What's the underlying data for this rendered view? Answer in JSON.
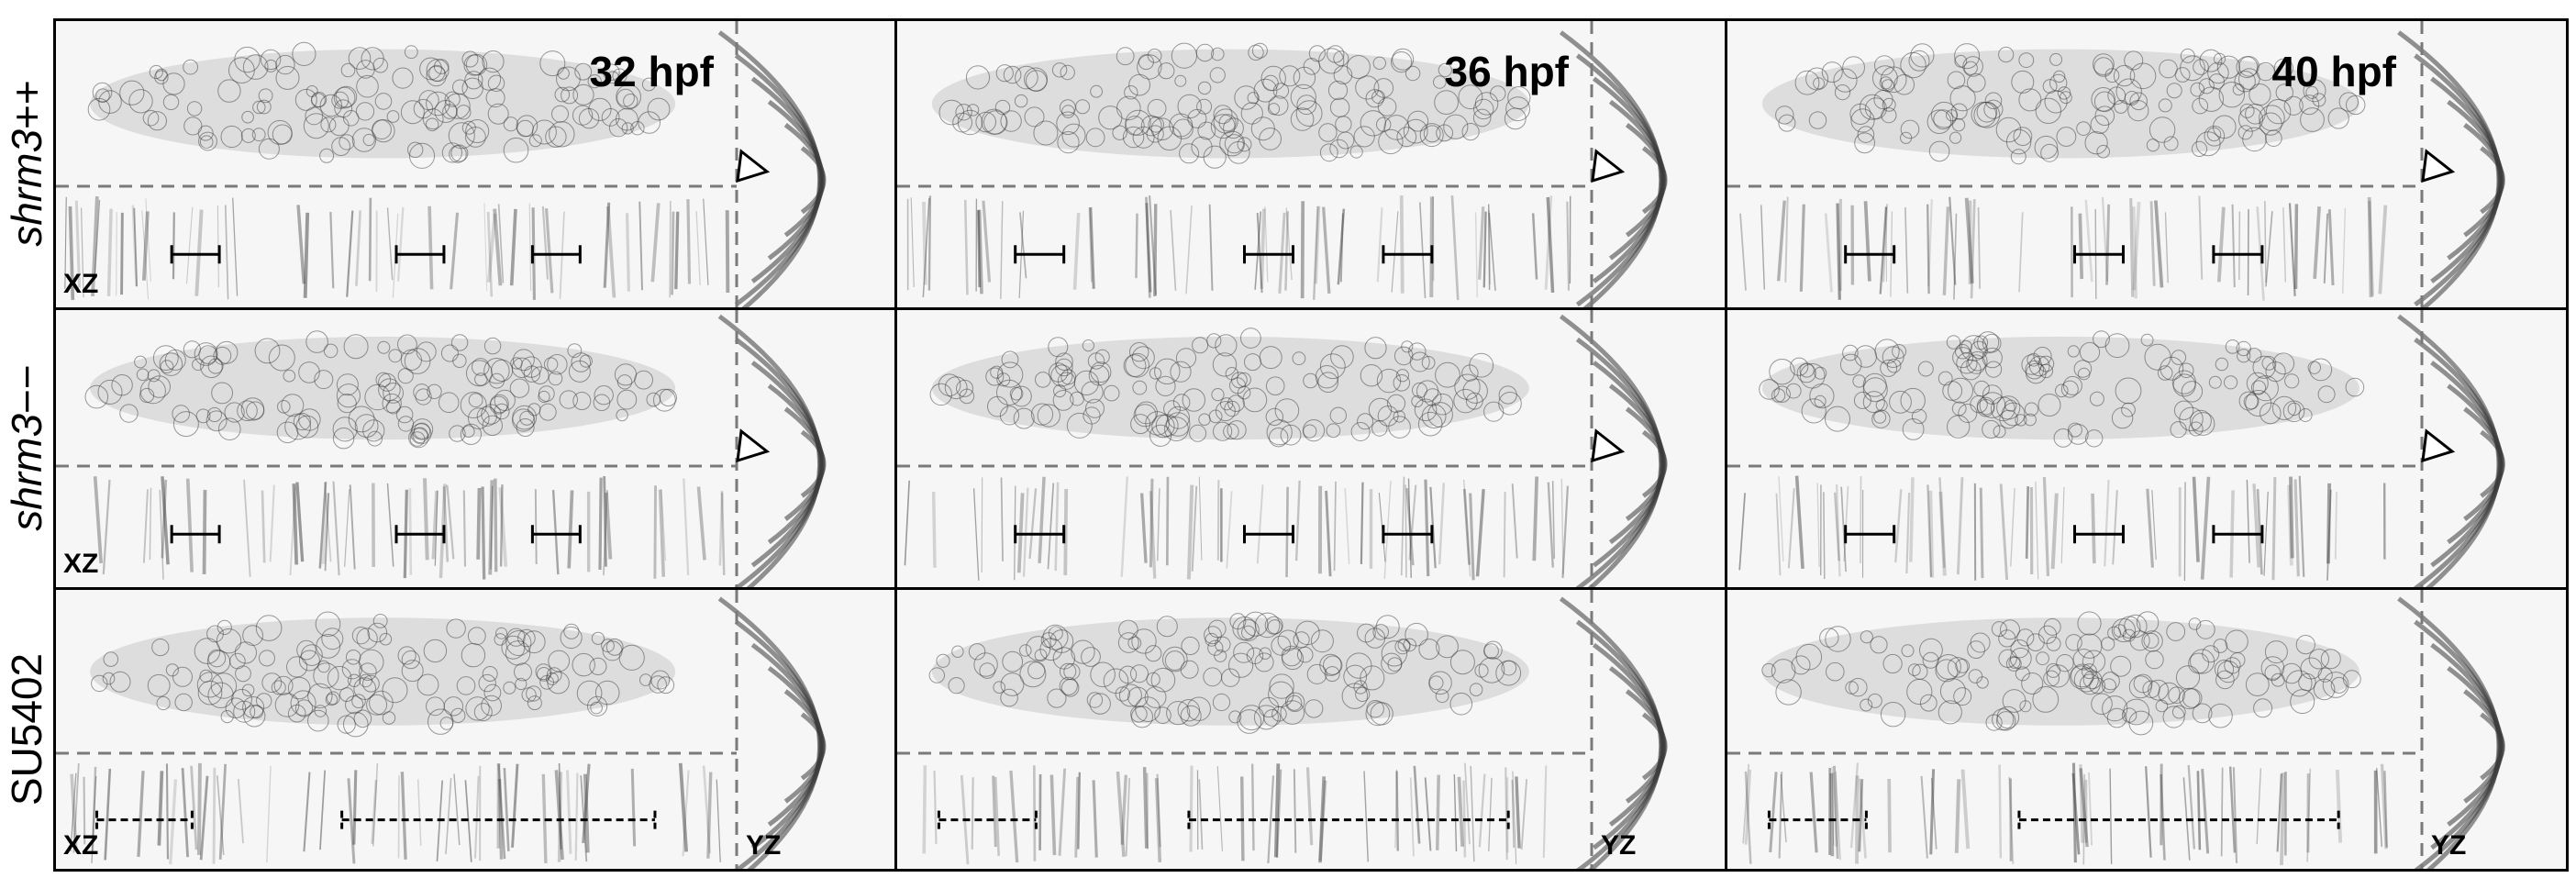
{
  "row_labels": [
    {
      "main": "shrm3",
      "suffix": "++",
      "italic": true
    },
    {
      "main": "shrm3",
      "suffix": "−−",
      "italic": true
    },
    {
      "main": "SU5402",
      "suffix": "",
      "italic": false
    }
  ],
  "time_labels": [
    "32 hpf",
    "36 hpf",
    "40 hpf"
  ],
  "plane_labels": {
    "xz": "XZ",
    "yz": "YZ"
  },
  "colors": {
    "border": "#000000",
    "dashed_line": "#7a7a7a",
    "tissue": "#3a3a3a"
  }
}
